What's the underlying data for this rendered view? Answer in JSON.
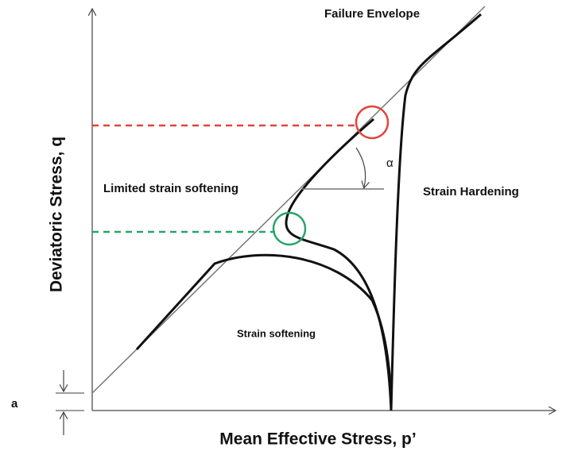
{
  "labels": {
    "failure_envelope": "Failure Envelope",
    "alpha": "α",
    "limited": "Limited strain softening",
    "hardening": "Strain Hardening",
    "softening": "Strain softening",
    "y_axis": "Deviatoric Stress, q",
    "x_axis": "Mean Effective Stress, p’",
    "a": "a"
  }
}
